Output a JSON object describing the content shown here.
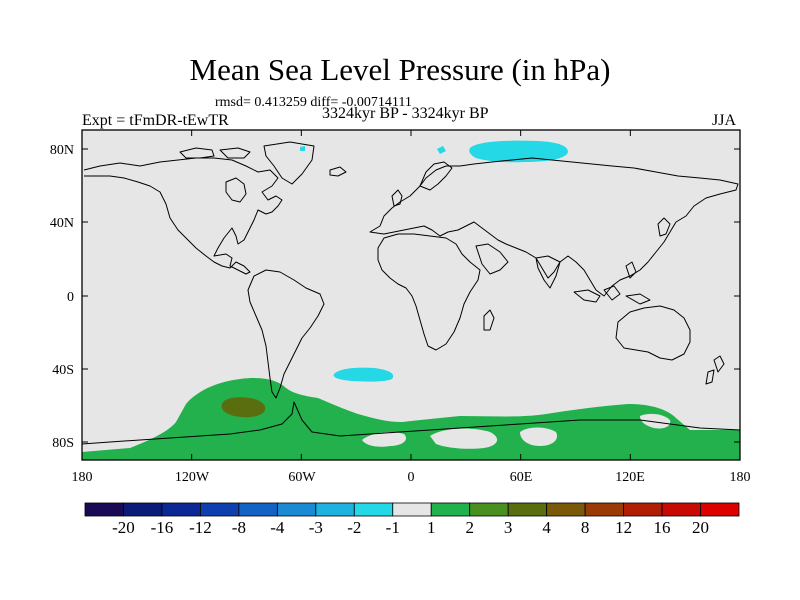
{
  "title": "Mean Sea Level Pressure (in hPa)",
  "stats": "rmsd= 0.413259 diff= -0.00714111",
  "period": "3324kyr BP - 3324kyr BP",
  "experiment": "Expt = tFmDR-tEwTR",
  "season": "JJA",
  "axes": {
    "lon_labels": [
      "180",
      "120W",
      "60W",
      "0",
      "60E",
      "120E",
      "180"
    ],
    "lat_labels": [
      "80N",
      "40N",
      "0",
      "40S",
      "80S"
    ]
  },
  "colorbar": {
    "labels": [
      "-20",
      "-16",
      "-12",
      "-8",
      "-4",
      "-3",
      "-2",
      "-1",
      "1",
      "2",
      "3",
      "4",
      "8",
      "12",
      "16",
      "20"
    ],
    "colors": [
      "#1a0a55",
      "#0c1a78",
      "#0b2896",
      "#0d3fb0",
      "#1263c4",
      "#1a8ad4",
      "#1fb2e0",
      "#25d8e6",
      "#e6e6e6",
      "#22b14c",
      "#4a9020",
      "#5a6e10",
      "#7a5a08",
      "#9a3a05",
      "#b01e05",
      "#c80a05",
      "#dc0000"
    ]
  },
  "colors": {
    "background": "#e6e6e6",
    "positive_1_2": "#22b14c",
    "positive_3_4": "#5a6e10",
    "negative_2_1": "#25d8e6"
  }
}
